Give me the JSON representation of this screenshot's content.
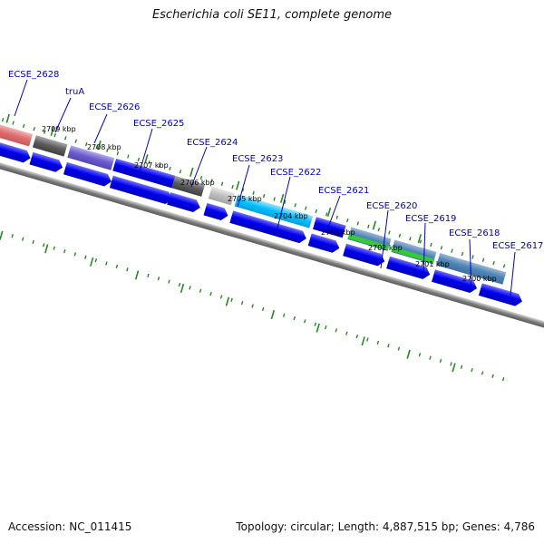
{
  "title": "Escherichia coli SE11, complete genome",
  "footer": {
    "accession": "Accession: NC_011415",
    "summary": "Topology: circular; Length: 4,887,515 bp; Genes: 4,786"
  },
  "gene_labels": [
    {
      "text": "ECSE_2628",
      "color": "#0000cc"
    },
    {
      "text": "truA",
      "color": "#0000cc"
    },
    {
      "text": "ECSE_2626",
      "color": "#0000cc"
    },
    {
      "text": "ECSE_2625",
      "color": "#0000cc"
    },
    {
      "text": "ECSE_2624",
      "color": "#0000cc"
    },
    {
      "text": "ECSE_2623",
      "color": "#0000cc"
    },
    {
      "text": "ECSE_2622",
      "color": "#0000cc"
    },
    {
      "text": "ECSE_2621",
      "color": "#0000cc"
    },
    {
      "text": "ECSE_2620",
      "color": "#0000cc"
    },
    {
      "text": "ECSE_2619",
      "color": "#0000cc"
    },
    {
      "text": "ECSE_2618",
      "color": "#0000cc"
    },
    {
      "text": "ECSE_2617",
      "color": "#0000cc"
    }
  ],
  "tick_labels": [
    "2709 kbp",
    "2708 kbp",
    "2707 kbp",
    "2706 kbp",
    "2705 kbp",
    "2704 kbp",
    "2703 kbp",
    "2702 kbp",
    "2701 kbp",
    "2700 kbp"
  ],
  "colors": {
    "cds_blue": "#0000ee",
    "backbone": "#808080",
    "tick_green": "#228b22",
    "feature_steel": "#4f86b8",
    "feature_red": "#e06c6c",
    "feature_gray": "#555555",
    "feature_purple": "#6a5acd",
    "feature_cyan": "#00bfff",
    "feature_green": "#33cc33",
    "feature_light_gray": "#c0c0c0"
  }
}
